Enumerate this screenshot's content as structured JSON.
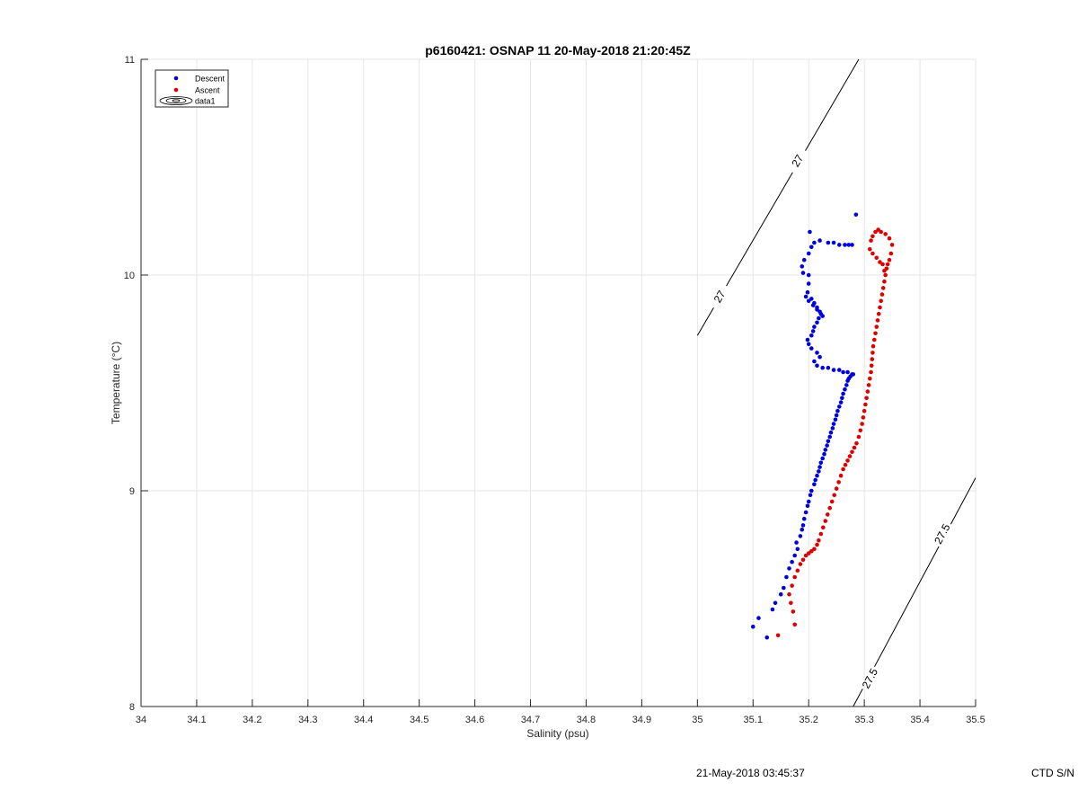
{
  "colors": {
    "descent": "#0000dd",
    "ascent": "#dd0000",
    "grid": "#e6e6e6",
    "axis": "#262626",
    "contour": "#000000"
  },
  "footer": {
    "timestamp": "21-May-2018 03:45:37",
    "serial": "CTD S/N"
  },
  "chart_data": {
    "type": "scatter",
    "title": "p6160421: OSNAP 11 20-May-2018 21:20:45Z",
    "xlabel": "Salinity (psu)",
    "ylabel": "Temperature (°C)",
    "xlim": [
      34,
      35.5
    ],
    "ylim": [
      8,
      11
    ],
    "xticks": [
      "34",
      "34.1",
      "34.2",
      "34.3",
      "34.4",
      "34.5",
      "34.6",
      "34.7",
      "34.8",
      "34.9",
      "35",
      "35.1",
      "35.2",
      "35.3",
      "35.4",
      "35.5"
    ],
    "yticks": [
      "8",
      "9",
      "10",
      "11"
    ],
    "grid": true,
    "legend_position": "top-left",
    "legend": [
      "Descent",
      "Ascent",
      "data1"
    ],
    "series": [
      {
        "name": "Descent",
        "x": [
          35.1,
          35.11,
          35.125,
          35.135,
          35.14,
          35.15,
          35.155,
          35.16,
          35.165,
          35.17,
          35.175,
          35.18,
          35.178,
          35.185,
          35.188,
          35.19,
          35.192,
          35.195,
          35.198,
          35.2,
          35.203,
          35.205,
          35.21,
          35.212,
          35.215,
          35.218,
          35.22,
          35.222,
          35.225,
          35.228,
          35.23,
          35.233,
          35.235,
          35.238,
          35.24,
          35.243,
          35.245,
          35.248,
          35.25,
          35.252,
          35.255,
          35.258,
          35.26,
          35.262,
          35.265,
          35.268,
          35.27,
          35.272,
          35.275,
          35.278,
          35.28,
          35.27,
          35.262,
          35.255,
          35.245,
          35.235,
          35.225,
          35.215,
          35.21,
          35.22,
          35.215,
          35.205,
          35.2,
          35.198,
          35.205,
          35.208,
          35.21,
          35.215,
          35.218,
          35.222,
          35.215,
          35.208,
          35.2,
          35.195,
          35.198,
          35.205,
          35.21,
          35.215,
          35.22,
          35.225,
          35.2,
          35.19,
          35.188,
          35.192,
          35.2,
          35.205,
          35.202,
          35.21,
          35.22,
          35.235,
          35.245,
          35.255,
          35.265,
          35.272,
          35.278,
          35.2,
          35.285
        ],
        "y": [
          8.37,
          8.41,
          8.32,
          8.45,
          8.48,
          8.52,
          8.55,
          8.6,
          8.64,
          8.67,
          8.7,
          8.73,
          8.76,
          8.79,
          8.82,
          8.84,
          8.87,
          8.9,
          8.93,
          8.95,
          8.98,
          9.0,
          9.03,
          9.05,
          9.07,
          9.09,
          9.11,
          9.13,
          9.15,
          9.17,
          9.19,
          9.21,
          9.23,
          9.25,
          9.27,
          9.29,
          9.31,
          9.33,
          9.35,
          9.37,
          9.39,
          9.41,
          9.43,
          9.45,
          9.47,
          9.49,
          9.51,
          9.52,
          9.53,
          9.54,
          9.54,
          9.55,
          9.55,
          9.56,
          9.56,
          9.57,
          9.57,
          9.58,
          9.6,
          9.62,
          9.64,
          9.66,
          9.68,
          9.7,
          9.72,
          9.74,
          9.76,
          9.78,
          9.8,
          9.82,
          9.84,
          9.86,
          9.88,
          9.9,
          9.92,
          9.89,
          9.87,
          9.85,
          9.83,
          9.81,
          9.96,
          10.01,
          10.04,
          10.07,
          10.1,
          10.13,
          10.2,
          10.15,
          10.16,
          10.15,
          10.15,
          10.14,
          10.14,
          10.14,
          10.14,
          10.0,
          10.28
        ]
      },
      {
        "name": "Ascent",
        "x": [
          35.145,
          35.175,
          35.172,
          35.168,
          35.165,
          35.17,
          35.175,
          35.18,
          35.185,
          35.19,
          35.195,
          35.2,
          35.205,
          35.21,
          35.215,
          35.218,
          35.222,
          35.226,
          35.23,
          35.234,
          35.238,
          35.242,
          35.246,
          35.25,
          35.254,
          35.258,
          35.262,
          35.266,
          35.27,
          35.274,
          35.278,
          35.282,
          35.286,
          35.29,
          35.293,
          35.296,
          35.298,
          35.3,
          35.302,
          35.304,
          35.306,
          35.308,
          35.31,
          35.312,
          35.313,
          35.314,
          35.315,
          35.316,
          35.318,
          35.32,
          35.322,
          35.324,
          35.326,
          35.328,
          35.33,
          35.332,
          35.334,
          35.336,
          35.338,
          35.34,
          35.342,
          35.345,
          35.348,
          35.35,
          35.345,
          35.338,
          35.33,
          35.325,
          35.32,
          35.315,
          35.312,
          35.31,
          35.315,
          35.322,
          35.328,
          35.333,
          35.336
        ],
        "y": [
          8.33,
          8.38,
          8.44,
          8.48,
          8.52,
          8.56,
          8.6,
          8.63,
          8.66,
          8.68,
          8.7,
          8.71,
          8.72,
          8.73,
          8.75,
          8.77,
          8.8,
          8.83,
          8.86,
          8.89,
          8.92,
          8.95,
          8.98,
          9.01,
          9.04,
          9.07,
          9.1,
          9.12,
          9.14,
          9.16,
          9.18,
          9.2,
          9.22,
          9.25,
          9.28,
          9.31,
          9.34,
          9.37,
          9.4,
          9.43,
          9.46,
          9.49,
          9.52,
          9.55,
          9.58,
          9.61,
          9.64,
          9.67,
          9.7,
          9.73,
          9.76,
          9.79,
          9.82,
          9.85,
          9.88,
          9.91,
          9.94,
          9.97,
          10.0,
          10.03,
          10.05,
          10.07,
          10.1,
          10.14,
          10.17,
          10.19,
          10.2,
          10.21,
          10.2,
          10.18,
          10.16,
          10.12,
          10.1,
          10.08,
          10.06,
          10.05,
          10.02
        ]
      }
    ],
    "contours": [
      {
        "label": "27",
        "x": [
          35.0,
          35.29
        ],
        "y": [
          9.72,
          11.0
        ],
        "label_positions": [
          [
            35.04,
            9.9
          ],
          [
            35.18,
            10.53
          ]
        ]
      },
      {
        "label": "27.5",
        "x": [
          35.28,
          35.5
        ],
        "y": [
          8.0,
          9.06
        ],
        "label_positions": [
          [
            35.31,
            8.13
          ],
          [
            35.44,
            8.8
          ]
        ]
      }
    ]
  }
}
